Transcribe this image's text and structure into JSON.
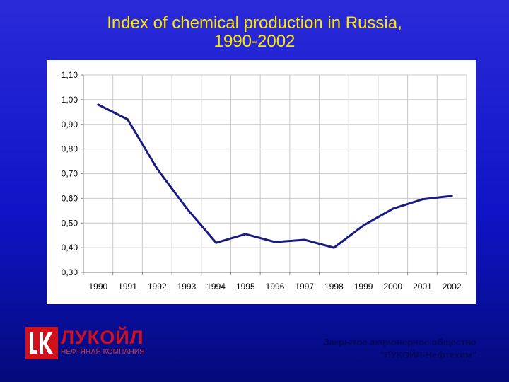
{
  "title": {
    "line1": "Index of chemical production in Russia,",
    "line2": "1990-2002"
  },
  "chart_data": {
    "type": "line",
    "title": "Index of chemical production in Russia, 1990-2002",
    "xlabel": "",
    "ylabel": "",
    "x": [
      "1990",
      "1991",
      "1992",
      "1993",
      "1994",
      "1995",
      "1996",
      "1997",
      "1998",
      "1999",
      "2000",
      "2001",
      "2002"
    ],
    "series": [
      {
        "values": [
          0.98,
          0.92,
          0.72,
          0.56,
          0.42,
          0.455,
          0.423,
          0.432,
          0.4,
          0.49,
          0.558,
          0.596,
          0.61
        ]
      }
    ],
    "ylim": [
      0.3,
      1.1
    ],
    "yticks": [
      "1,10",
      "1,00",
      "0,90",
      "0,80",
      "0,70",
      "0,60",
      "0,50",
      "0,40",
      "0,30"
    ],
    "grid": true,
    "line_color": "#1a1a80"
  },
  "logo": {
    "name": "ЛУКОЙЛ",
    "subtitle": "НЕФТЯНАЯ КОМПАНИЯ",
    "color": "#d0101a"
  },
  "company": {
    "line1": "Закрытое акционерное общество",
    "line2": "\"ЛУКОЙЛ-Нефтехим\""
  }
}
